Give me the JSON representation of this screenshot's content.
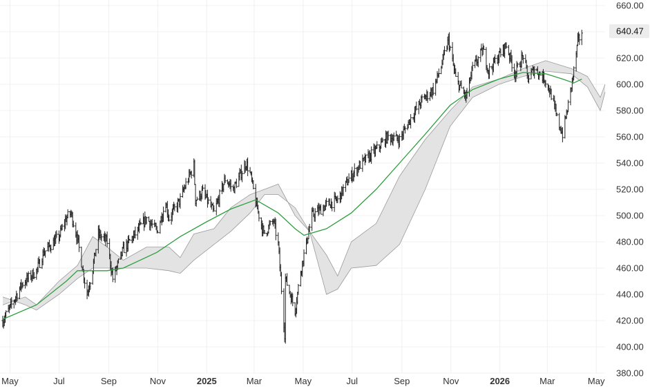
{
  "chart_data": {
    "type": "candlestick-ohlc",
    "overlays": [
      "Ichimoku cloud (shaded)",
      "moving average line"
    ],
    "colors": {
      "background": "#ffffff",
      "bars": "#222222",
      "ma_line": "#2e9e3e",
      "cloud_fill": "#e3e3e3",
      "cloud_edge": "#9a9a9a",
      "grid": "#f0f0f0",
      "last_price_bg": "#ececec"
    },
    "grid": true,
    "ylim": [
      380,
      660
    ],
    "y_ticks": [
      "380.00",
      "400.00",
      "420.00",
      "440.00",
      "460.00",
      "480.00",
      "500.00",
      "520.00",
      "540.00",
      "560.00",
      "580.00",
      "600.00",
      "620.00",
      "640.00",
      "660.00"
    ],
    "last_price": "640.47",
    "last_value": 640.47,
    "x_ticks": [
      {
        "label": "May",
        "date": "2024-05-01",
        "bold": false
      },
      {
        "label": "Jul",
        "date": "2024-07-01",
        "bold": false
      },
      {
        "label": "Sep",
        "date": "2024-09-01",
        "bold": false
      },
      {
        "label": "Nov",
        "date": "2024-11-01",
        "bold": false
      },
      {
        "label": "2025",
        "date": "2025-01-01",
        "bold": true
      },
      {
        "label": "Mar",
        "date": "2025-03-01",
        "bold": false
      },
      {
        "label": "May",
        "date": "2025-05-01",
        "bold": false
      },
      {
        "label": "Jul",
        "date": "2025-07-01",
        "bold": false
      },
      {
        "label": "Sep",
        "date": "2025-09-01",
        "bold": false
      },
      {
        "label": "Nov",
        "date": "2025-11-01",
        "bold": false
      },
      {
        "label": "2026",
        "date": "2026-01-01",
        "bold": true
      },
      {
        "label": "Mar",
        "date": "2026-03-01",
        "bold": false
      },
      {
        "label": "May",
        "date": "2026-05-01",
        "bold": false
      }
    ],
    "price_close": [
      [
        "2024-04-22",
        420
      ],
      [
        "2024-05-03",
        432
      ],
      [
        "2024-05-16",
        448
      ],
      [
        "2024-06-03",
        458
      ],
      [
        "2024-06-12",
        472
      ],
      [
        "2024-07-01",
        484
      ],
      [
        "2024-07-10",
        498
      ],
      [
        "2024-07-16",
        502
      ],
      [
        "2024-07-24",
        482
      ],
      [
        "2024-08-05",
        440
      ],
      [
        "2024-08-12",
        460
      ],
      [
        "2024-08-19",
        486
      ],
      [
        "2024-08-30",
        480
      ],
      [
        "2024-09-06",
        452
      ],
      [
        "2024-09-19",
        474
      ],
      [
        "2024-10-04",
        486
      ],
      [
        "2024-10-18",
        498
      ],
      [
        "2024-10-31",
        488
      ],
      [
        "2024-11-11",
        510
      ],
      [
        "2024-11-15",
        498
      ],
      [
        "2024-11-29",
        512
      ],
      [
        "2024-12-06",
        524
      ],
      [
        "2024-12-16",
        538
      ],
      [
        "2024-12-18",
        512
      ],
      [
        "2024-12-27",
        518
      ],
      [
        "2025-01-10",
        502
      ],
      [
        "2025-01-24",
        528
      ],
      [
        "2025-02-03",
        520
      ],
      [
        "2025-02-19",
        540
      ],
      [
        "2025-02-24",
        532
      ],
      [
        "2025-03-03",
        510
      ],
      [
        "2025-03-13",
        486
      ],
      [
        "2025-03-25",
        496
      ],
      [
        "2025-03-31",
        478
      ],
      [
        "2025-04-08",
        410
      ],
      [
        "2025-04-09",
        452
      ],
      [
        "2025-04-21",
        428
      ],
      [
        "2025-04-28",
        458
      ],
      [
        "2025-05-02",
        470
      ],
      [
        "2025-05-12",
        500
      ],
      [
        "2025-05-30",
        508
      ],
      [
        "2025-06-13",
        512
      ],
      [
        "2025-06-27",
        528
      ],
      [
        "2025-07-10",
        538
      ],
      [
        "2025-07-31",
        550
      ],
      [
        "2025-08-14",
        560
      ],
      [
        "2025-08-29",
        558
      ],
      [
        "2025-09-12",
        574
      ],
      [
        "2025-09-26",
        588
      ],
      [
        "2025-10-10",
        596
      ],
      [
        "2025-10-20",
        614
      ],
      [
        "2025-10-29",
        634
      ],
      [
        "2025-11-07",
        604
      ],
      [
        "2025-11-20",
        590
      ],
      [
        "2025-11-28",
        612
      ],
      [
        "2025-12-11",
        626
      ],
      [
        "2025-12-18",
        610
      ],
      [
        "2025-12-31",
        622
      ],
      [
        "2026-01-09",
        630
      ],
      [
        "2026-01-20",
        608
      ],
      [
        "2026-01-30",
        622
      ],
      [
        "2026-02-05",
        604
      ],
      [
        "2026-02-13",
        612
      ],
      [
        "2026-02-26",
        604
      ],
      [
        "2026-03-06",
        592
      ],
      [
        "2026-03-13",
        574
      ],
      [
        "2026-03-20",
        562
      ],
      [
        "2026-03-27",
        584
      ],
      [
        "2026-04-03",
        610
      ],
      [
        "2026-04-08",
        632
      ],
      [
        "2026-04-13",
        640.47
      ]
    ],
    "ma_line": [
      [
        "2024-04-22",
        421
      ],
      [
        "2024-06-03",
        432
      ],
      [
        "2024-07-10",
        450
      ],
      [
        "2024-07-24",
        458
      ],
      [
        "2024-08-30",
        458
      ],
      [
        "2024-09-19",
        460
      ],
      [
        "2024-10-31",
        472
      ],
      [
        "2024-11-29",
        484
      ],
      [
        "2024-12-31",
        495
      ],
      [
        "2025-01-31",
        505
      ],
      [
        "2025-03-03",
        512
      ],
      [
        "2025-03-31",
        502
      ],
      [
        "2025-04-21",
        490
      ],
      [
        "2025-05-02",
        485
      ],
      [
        "2025-05-30",
        490
      ],
      [
        "2025-06-30",
        502
      ],
      [
        "2025-07-31",
        520
      ],
      [
        "2025-08-29",
        540
      ],
      [
        "2025-09-30",
        562
      ],
      [
        "2025-10-31",
        584
      ],
      [
        "2025-11-28",
        596
      ],
      [
        "2025-12-31",
        604
      ],
      [
        "2026-01-30",
        609
      ],
      [
        "2026-02-27",
        608
      ],
      [
        "2026-03-20",
        604
      ],
      [
        "2026-04-03",
        601
      ],
      [
        "2026-04-13",
        604
      ]
    ],
    "cloud_span_a": [
      [
        "2024-04-22",
        432
      ],
      [
        "2024-05-20",
        438
      ],
      [
        "2024-06-03",
        432
      ],
      [
        "2024-07-01",
        450
      ],
      [
        "2024-07-24",
        462
      ],
      [
        "2024-08-12",
        484
      ],
      [
        "2024-08-30",
        476
      ],
      [
        "2024-09-19",
        466
      ],
      [
        "2024-10-18",
        476
      ],
      [
        "2024-11-15",
        476
      ],
      [
        "2024-11-29",
        468
      ],
      [
        "2024-12-16",
        486
      ],
      [
        "2025-01-10",
        490
      ],
      [
        "2025-01-31",
        506
      ],
      [
        "2025-02-24",
        516
      ],
      [
        "2025-03-14",
        520
      ],
      [
        "2025-03-31",
        524
      ],
      [
        "2025-04-21",
        500
      ],
      [
        "2025-05-09",
        488
      ],
      [
        "2025-05-30",
        470
      ],
      [
        "2025-06-13",
        454
      ],
      [
        "2025-06-30",
        480
      ],
      [
        "2025-07-31",
        494
      ],
      [
        "2025-08-29",
        530
      ],
      [
        "2025-09-30",
        558
      ],
      [
        "2025-10-31",
        580
      ],
      [
        "2025-11-28",
        598
      ],
      [
        "2025-12-31",
        604
      ],
      [
        "2026-01-30",
        612
      ],
      [
        "2026-02-27",
        618
      ],
      [
        "2026-03-31",
        612
      ],
      [
        "2026-04-20",
        606
      ],
      [
        "2026-05-06",
        590
      ],
      [
        "2026-05-12",
        600
      ]
    ],
    "cloud_span_b": [
      [
        "2024-04-22",
        438
      ],
      [
        "2024-05-20",
        432
      ],
      [
        "2024-06-03",
        428
      ],
      [
        "2024-07-01",
        440
      ],
      [
        "2024-07-24",
        452
      ],
      [
        "2024-08-12",
        460
      ],
      [
        "2024-08-30",
        460
      ],
      [
        "2024-09-19",
        460
      ],
      [
        "2024-10-18",
        460
      ],
      [
        "2024-11-15",
        458
      ],
      [
        "2024-11-29",
        456
      ],
      [
        "2024-12-16",
        466
      ],
      [
        "2025-01-10",
        478
      ],
      [
        "2025-01-31",
        488
      ],
      [
        "2025-02-24",
        502
      ],
      [
        "2025-03-14",
        516
      ],
      [
        "2025-03-31",
        516
      ],
      [
        "2025-04-21",
        506
      ],
      [
        "2025-05-09",
        488
      ],
      [
        "2025-05-30",
        440
      ],
      [
        "2025-06-13",
        444
      ],
      [
        "2025-06-30",
        460
      ],
      [
        "2025-07-31",
        462
      ],
      [
        "2025-08-29",
        478
      ],
      [
        "2025-09-30",
        520
      ],
      [
        "2025-10-31",
        568
      ],
      [
        "2025-11-28",
        590
      ],
      [
        "2025-12-31",
        600
      ],
      [
        "2026-01-30",
        606
      ],
      [
        "2026-02-27",
        610
      ],
      [
        "2026-03-31",
        608
      ],
      [
        "2026-04-20",
        598
      ],
      [
        "2026-05-06",
        580
      ],
      [
        "2026-05-12",
        594
      ]
    ]
  }
}
